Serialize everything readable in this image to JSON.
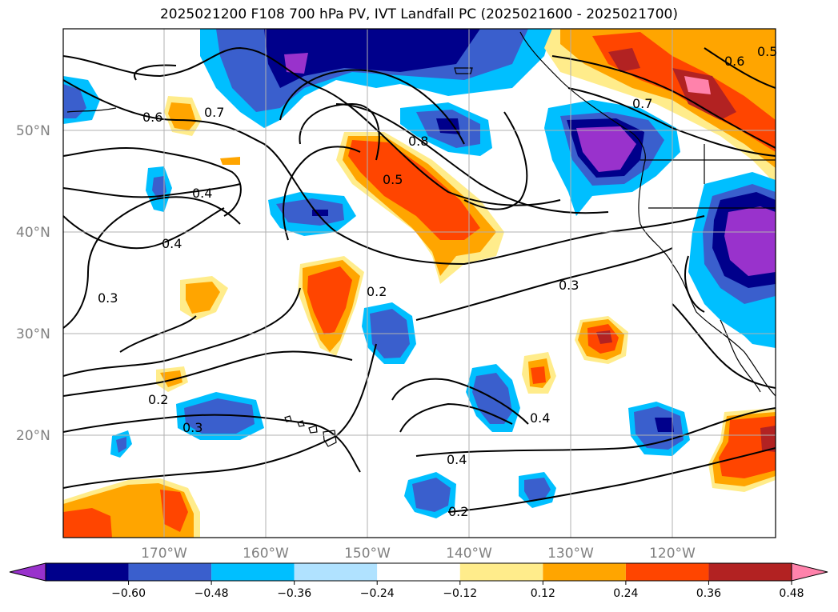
{
  "title": "2025021200 F108 700 hPa PV, IVT Landfall PC (2025021600 - 2025021700)",
  "lat_labels": [
    "50°N",
    "40°N",
    "30°N",
    "20°N"
  ],
  "lon_labels": [
    "170°W",
    "160°W",
    "150°W",
    "140°W",
    "130°W",
    "120°W"
  ],
  "colorbar": {
    "tick_labels": [
      "−0.60",
      "−0.48",
      "−0.36",
      "−0.24",
      "−0.12",
      "0.12",
      "0.24",
      "0.36",
      "0.48",
      "0.60"
    ],
    "colors": [
      "#9932cc",
      "#00008b",
      "#3a5fcd",
      "#00bfff",
      "#b0e2ff",
      "#ffffff",
      "#ffec8b",
      "#ffa500",
      "#ff4500",
      "#b22222",
      "#ff82ab"
    ]
  },
  "contour_labels": [
    "0.6",
    "0.7",
    "0.4",
    "0.4",
    "0.3",
    "0.8",
    "0.5",
    "0.2",
    "0.3",
    "0.7",
    "0.6",
    "0.5",
    "0.2",
    "0.3",
    "0.4",
    "0.4",
    "0.2"
  ],
  "colors": {
    "grid": "#b0b0b0",
    "axis_text": "#808080",
    "contour": "#000000"
  }
}
